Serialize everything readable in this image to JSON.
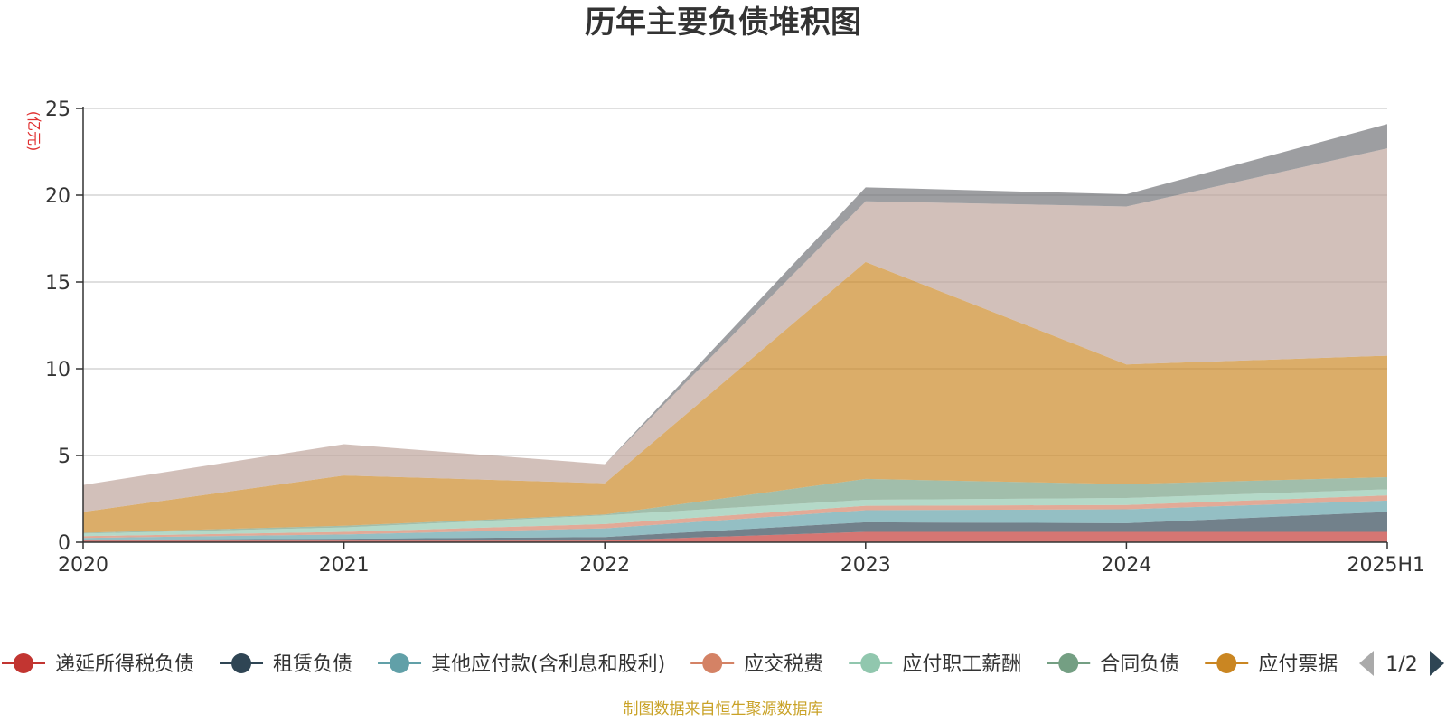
{
  "chart_data": {
    "type": "area",
    "stacked": true,
    "title": "历年主要负债堆积图",
    "ylabel": "(亿元)",
    "xlabel": "",
    "ylim": [
      0,
      25
    ],
    "yticks": [
      0,
      5,
      10,
      15,
      20,
      25
    ],
    "grid": true,
    "categories": [
      "2020",
      "2021",
      "2022",
      "2023",
      "2024",
      "2025H1"
    ],
    "series": [
      {
        "name": "递延所得税负债",
        "color": "#c23531",
        "values": [
          0.1,
          0.1,
          0.1,
          0.6,
          0.6,
          0.6
        ]
      },
      {
        "name": "租赁负债",
        "color": "#2f4554",
        "values": [
          0.05,
          0.1,
          0.2,
          0.55,
          0.5,
          1.15
        ]
      },
      {
        "name": "其他应付款(含利息和股利)",
        "color": "#61a0a8",
        "values": [
          0.1,
          0.25,
          0.5,
          0.7,
          0.8,
          0.65
        ]
      },
      {
        "name": "应交税费",
        "color": "#d48265",
        "values": [
          0.1,
          0.15,
          0.25,
          0.25,
          0.25,
          0.3
        ]
      },
      {
        "name": "应付职工薪酬",
        "color": "#91c7ae",
        "values": [
          0.15,
          0.25,
          0.5,
          0.35,
          0.4,
          0.35
        ]
      },
      {
        "name": "合同负债",
        "color": "#749f83",
        "values": [
          0.05,
          0.1,
          0.05,
          1.2,
          0.8,
          0.7
        ]
      },
      {
        "name": "应付票据",
        "color": "#ca8622",
        "values": [
          1.2,
          2.9,
          1.8,
          12.5,
          6.9,
          7.0
        ]
      },
      {
        "name": "",
        "color": "#bda29a",
        "values": [
          1.55,
          1.8,
          1.1,
          3.5,
          9.1,
          11.95
        ]
      },
      {
        "name": "",
        "color": "#6e7074",
        "values": [
          0.0,
          0.0,
          0.0,
          0.8,
          0.7,
          1.4
        ]
      }
    ]
  },
  "legend": {
    "items": [
      {
        "label": "递延所得税负债",
        "color": "#c23531"
      },
      {
        "label": "租赁负债",
        "color": "#2f4554"
      },
      {
        "label": "其他应付款(含利息和股利)",
        "color": "#61a0a8"
      },
      {
        "label": "应交税费",
        "color": "#d48265"
      },
      {
        "label": "应付职工薪酬",
        "color": "#91c7ae"
      },
      {
        "label": "合同负债",
        "color": "#749f83"
      },
      {
        "label": "应付票据",
        "color": "#ca8622"
      }
    ],
    "page_text": "1/2",
    "prev_icon": "triangle-left-icon",
    "next_icon": "triangle-right-icon"
  },
  "source_text": "制图数据来自恒生聚源数据库",
  "colors": {
    "grid": "#cccccc",
    "axis": "#333333",
    "unit": "#e03030",
    "source": "#c9a227",
    "pager_active": "#2f4554",
    "pager_inactive": "#aaaaaa"
  }
}
